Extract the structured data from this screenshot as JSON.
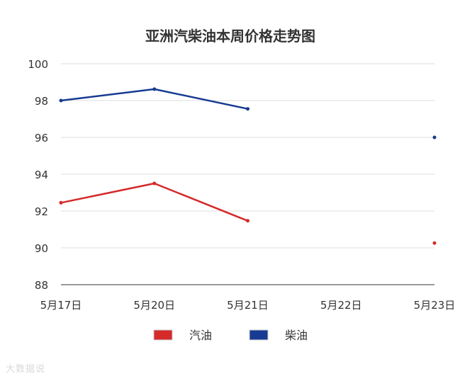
{
  "chart_data": {
    "type": "line",
    "title": "亚洲汽柴油本周价格走势图",
    "categories": [
      "5月17日",
      "5月20日",
      "5月21日",
      "5月22日",
      "5月23日"
    ],
    "ylim": [
      88,
      100
    ],
    "yticks": [
      88,
      90,
      92,
      94,
      96,
      98,
      100
    ],
    "grid": true,
    "legend_position": "bottom",
    "series": [
      {
        "name": "汽油",
        "color": "#d42a2a",
        "values": [
          92.45,
          93.5,
          91.47,
          null,
          90.26
        ]
      },
      {
        "name": "柴油",
        "color": "#173b92",
        "values": [
          98.0,
          98.62,
          97.55,
          null,
          96.0
        ]
      }
    ]
  },
  "watermark": "大数据说"
}
